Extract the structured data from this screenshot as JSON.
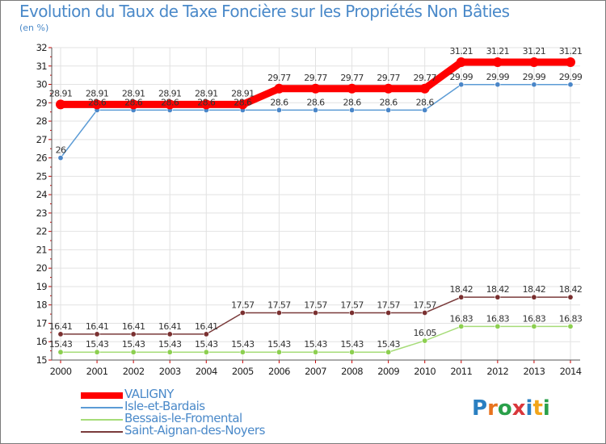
{
  "chart_data": {
    "type": "line",
    "title": "Evolution du Taux de Taxe Foncière sur les Propriétés Non Bâties",
    "ylabel": "(en %)",
    "xlabel": "",
    "ylim": [
      15,
      32
    ],
    "yticks": [
      15,
      16,
      17,
      18,
      19,
      20,
      21,
      22,
      23,
      24,
      25,
      26,
      27,
      28,
      29,
      30,
      31,
      32
    ],
    "categories": [
      "2000",
      "2001",
      "2002",
      "2003",
      "2004",
      "2005",
      "2006",
      "2007",
      "2008",
      "2009",
      "2010",
      "2011",
      "2012",
      "2013",
      "2014"
    ],
    "grid": true,
    "series": [
      {
        "name": "VALIGNY",
        "color": "#ff0000",
        "emphasis": true,
        "values": [
          28.91,
          28.91,
          28.91,
          28.91,
          28.91,
          28.91,
          29.77,
          29.77,
          29.77,
          29.77,
          29.77,
          31.21,
          31.21,
          31.21,
          31.21
        ],
        "labels": [
          "28.91",
          "28.91",
          "28.91",
          "28.91",
          "28.91",
          "28.91",
          "29.77",
          "29.77",
          "29.77",
          "29.77",
          "29.77",
          "31.21",
          "31.21",
          "31.21",
          "31.21"
        ]
      },
      {
        "name": "Isle-et-Bardais",
        "color": "#5b9bd5",
        "point_color": "#4a86c8",
        "values": [
          26,
          28.6,
          28.6,
          28.6,
          28.6,
          28.6,
          28.6,
          28.6,
          28.6,
          28.6,
          28.6,
          29.99,
          29.99,
          29.99,
          29.99
        ],
        "labels": [
          "26",
          "28.6",
          "28.6",
          "28.6",
          "28.6",
          "28.6",
          "28.6",
          "28.6",
          "28.6",
          "28.6",
          "28.6",
          "29.99",
          "29.99",
          "29.99",
          "29.99"
        ]
      },
      {
        "name": "Bessais-le-Fromental",
        "color": "#a6dc78",
        "point_color": "#8ccf50",
        "values": [
          15.43,
          15.43,
          15.43,
          15.43,
          15.43,
          15.43,
          15.43,
          15.43,
          15.43,
          15.43,
          16.05,
          16.83,
          16.83,
          16.83,
          16.83
        ],
        "labels": [
          "15.43",
          "15.43",
          "15.43",
          "15.43",
          "15.43",
          "15.43",
          "15.43",
          "15.43",
          "15.43",
          "15.43",
          "16.05",
          "16.83",
          "16.83",
          "16.83",
          "16.83"
        ]
      },
      {
        "name": "Saint-Aignan-des-Noyers",
        "color": "#7a3b3b",
        "point_color": "#7a3030",
        "values": [
          16.41,
          16.41,
          16.41,
          16.41,
          16.41,
          17.57,
          17.57,
          17.57,
          17.57,
          17.57,
          17.57,
          18.42,
          18.42,
          18.42,
          18.42
        ],
        "labels": [
          "16.41",
          "16.41",
          "16.41",
          "16.41",
          "16.41",
          "17.57",
          "17.57",
          "17.57",
          "17.57",
          "17.57",
          "17.57",
          "18.42",
          "18.42",
          "18.42",
          "18.42"
        ]
      }
    ]
  },
  "logo": {
    "text": "Proxiti"
  }
}
